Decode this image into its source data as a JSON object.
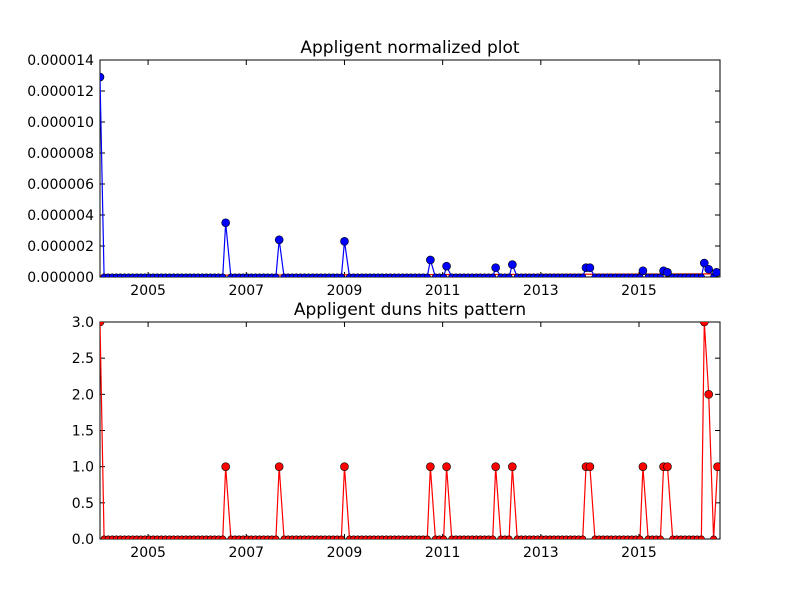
{
  "chart_data": [
    {
      "type": "line",
      "title": "Appligent normalized plot",
      "xlabel": "",
      "ylabel": "",
      "xlim": [
        2004.02,
        2016.65
      ],
      "ylim": [
        0,
        1.4e-05
      ],
      "xticks": [
        2005,
        2007,
        2009,
        2011,
        2013,
        2015
      ],
      "xtick_labels": [
        "2005",
        "2007",
        "2009",
        "2011",
        "2013",
        "2015"
      ],
      "yticks": [
        0,
        2e-06,
        4e-06,
        6e-06,
        8e-06,
        1e-05,
        1.2e-05,
        1.4e-05
      ],
      "ytick_labels": [
        "0.000000",
        "0.000002",
        "0.000004",
        "0.000006",
        "0.000008",
        "0.000010",
        "0.000012",
        "0.000014"
      ],
      "baseline": {
        "color": "#ff0000",
        "values": [
          [
            2004.02,
            1e-07
          ],
          [
            2016.65,
            2e-07
          ]
        ]
      },
      "series": [
        {
          "color": "#0000ff",
          "marker_color": "#0000ff",
          "points": [
            [
              2004.02,
              1.29e-05
            ],
            [
              2006.58,
              3.5e-06
            ],
            [
              2007.67,
              2.4e-06
            ],
            [
              2009.0,
              2.3e-06
            ],
            [
              2010.75,
              1.1e-06
            ],
            [
              2011.08,
              7e-07
            ],
            [
              2012.08,
              6e-07
            ],
            [
              2012.42,
              8e-07
            ],
            [
              2013.92,
              6e-07
            ],
            [
              2014.0,
              6e-07
            ],
            [
              2015.08,
              4e-07
            ],
            [
              2015.5,
              4e-07
            ],
            [
              2015.58,
              3e-07
            ],
            [
              2016.33,
              9e-07
            ],
            [
              2016.42,
              5e-07
            ],
            [
              2016.58,
              3e-07
            ]
          ]
        }
      ],
      "grid": false
    },
    {
      "type": "line",
      "title": "Appligent duns hits pattern",
      "xlabel": "",
      "ylabel": "",
      "xlim": [
        2004.02,
        2016.65
      ],
      "ylim": [
        0,
        3
      ],
      "xticks": [
        2005,
        2007,
        2009,
        2011,
        2013,
        2015
      ],
      "xtick_labels": [
        "2005",
        "2007",
        "2009",
        "2011",
        "2013",
        "2015"
      ],
      "yticks": [
        0,
        0.5,
        1,
        1.5,
        2,
        2.5,
        3
      ],
      "ytick_labels": [
        "0.0",
        "0.5",
        "1.0",
        "1.5",
        "2.0",
        "2.5",
        "3.0"
      ],
      "series": [
        {
          "color": "#ff0000",
          "marker_color": "#ff0000",
          "points": [
            [
              2004.02,
              3
            ],
            [
              2006.58,
              1
            ],
            [
              2007.67,
              1
            ],
            [
              2009.0,
              1
            ],
            [
              2010.75,
              1
            ],
            [
              2011.08,
              1
            ],
            [
              2012.08,
              1
            ],
            [
              2012.42,
              1
            ],
            [
              2013.92,
              1
            ],
            [
              2014.0,
              1
            ],
            [
              2015.08,
              1
            ],
            [
              2015.5,
              1
            ],
            [
              2015.58,
              1
            ],
            [
              2016.33,
              3
            ],
            [
              2016.42,
              2
            ],
            [
              2016.6,
              1
            ]
          ]
        }
      ],
      "grid": false
    }
  ]
}
